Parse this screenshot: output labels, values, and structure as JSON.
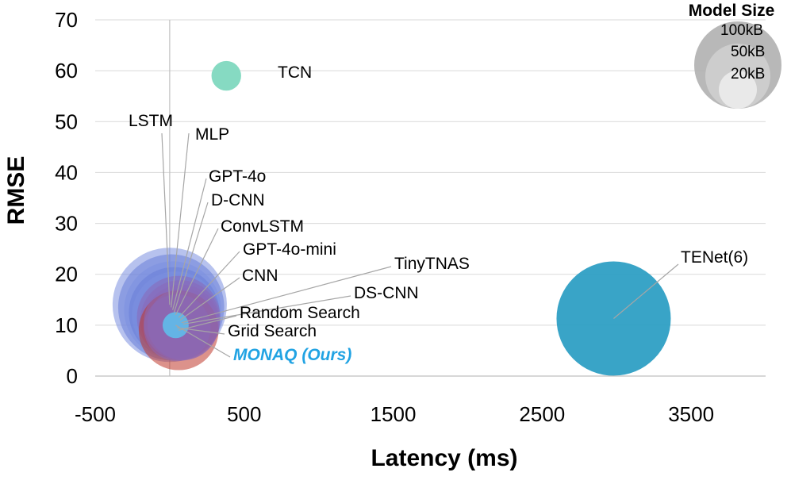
{
  "chart_data": {
    "type": "scatter",
    "subtype": "bubble",
    "title": "",
    "xlabel": "Latency (ms)",
    "ylabel": "RMSE",
    "xlim": [
      -500,
      4000
    ],
    "ylim": [
      0,
      70
    ],
    "x_ticks": [
      -500,
      500,
      1500,
      2500,
      3500
    ],
    "y_ticks": [
      0,
      10,
      20,
      30,
      40,
      50,
      60,
      70
    ],
    "vertical_reference_x": 0,
    "grid": "horizontal",
    "colors": {
      "tcn": "#7fd8bf",
      "tenet": "#2e9fc4",
      "large_blue": "#7b8fe0",
      "mid_blue": "#6a7fd8",
      "red": "#c0392b",
      "purple": "#8a6ab8",
      "monaq": "#62b8e8",
      "legend_dark": "#b0b0b0",
      "legend_mid": "#cfcfcf",
      "legend_light": "#ececec",
      "monaq_label": "#21a3e3"
    },
    "series": [
      {
        "name": "TCN",
        "x": 380,
        "y": 59,
        "size_kB": 3.7,
        "color_key": "tcn"
      },
      {
        "name": "TENet(6)",
        "x": 2980,
        "y": 11.3,
        "size_kB": 100,
        "color_key": "tenet"
      },
      {
        "name": "LSTM",
        "x": 0,
        "y": 14,
        "size_kB": 100,
        "color_key": "large_blue"
      },
      {
        "name": "MLP",
        "x": 10,
        "y": 13.5,
        "size_kB": 85,
        "color_key": "mid_blue"
      },
      {
        "name": "GPT-4o",
        "x": 20,
        "y": 13,
        "size_kB": 70,
        "color_key": "large_blue"
      },
      {
        "name": "D-CNN",
        "x": 30,
        "y": 12.5,
        "size_kB": 60,
        "color_key": "mid_blue"
      },
      {
        "name": "ConvLSTM",
        "x": 40,
        "y": 12,
        "size_kB": 55,
        "color_key": "large_blue"
      },
      {
        "name": "GPT-4o-mini",
        "x": 60,
        "y": 11.5,
        "size_kB": 50,
        "color_key": "purple"
      },
      {
        "name": "CNN",
        "x": 70,
        "y": 11,
        "size_kB": 45,
        "color_key": "purple"
      },
      {
        "name": "TinyTNAS",
        "x": 80,
        "y": 10.5,
        "size_kB": 40,
        "color_key": "purple"
      },
      {
        "name": "DS-CNN",
        "x": 90,
        "y": 10.2,
        "size_kB": 35,
        "color_key": "purple"
      },
      {
        "name": "Random Search",
        "x": 60,
        "y": 9,
        "size_kB": 45,
        "color_key": "red"
      },
      {
        "name": "Grid Search",
        "x": 50,
        "y": 9.5,
        "size_kB": 30,
        "color_key": "purple"
      },
      {
        "name": "MONAQ (Ours)",
        "x": 40,
        "y": 10,
        "size_kB": 2.5,
        "color_key": "monaq"
      }
    ],
    "legend": {
      "title": "Model Size",
      "position": "top-right",
      "entries": [
        "100kB",
        "50kB",
        "20kB"
      ]
    }
  }
}
